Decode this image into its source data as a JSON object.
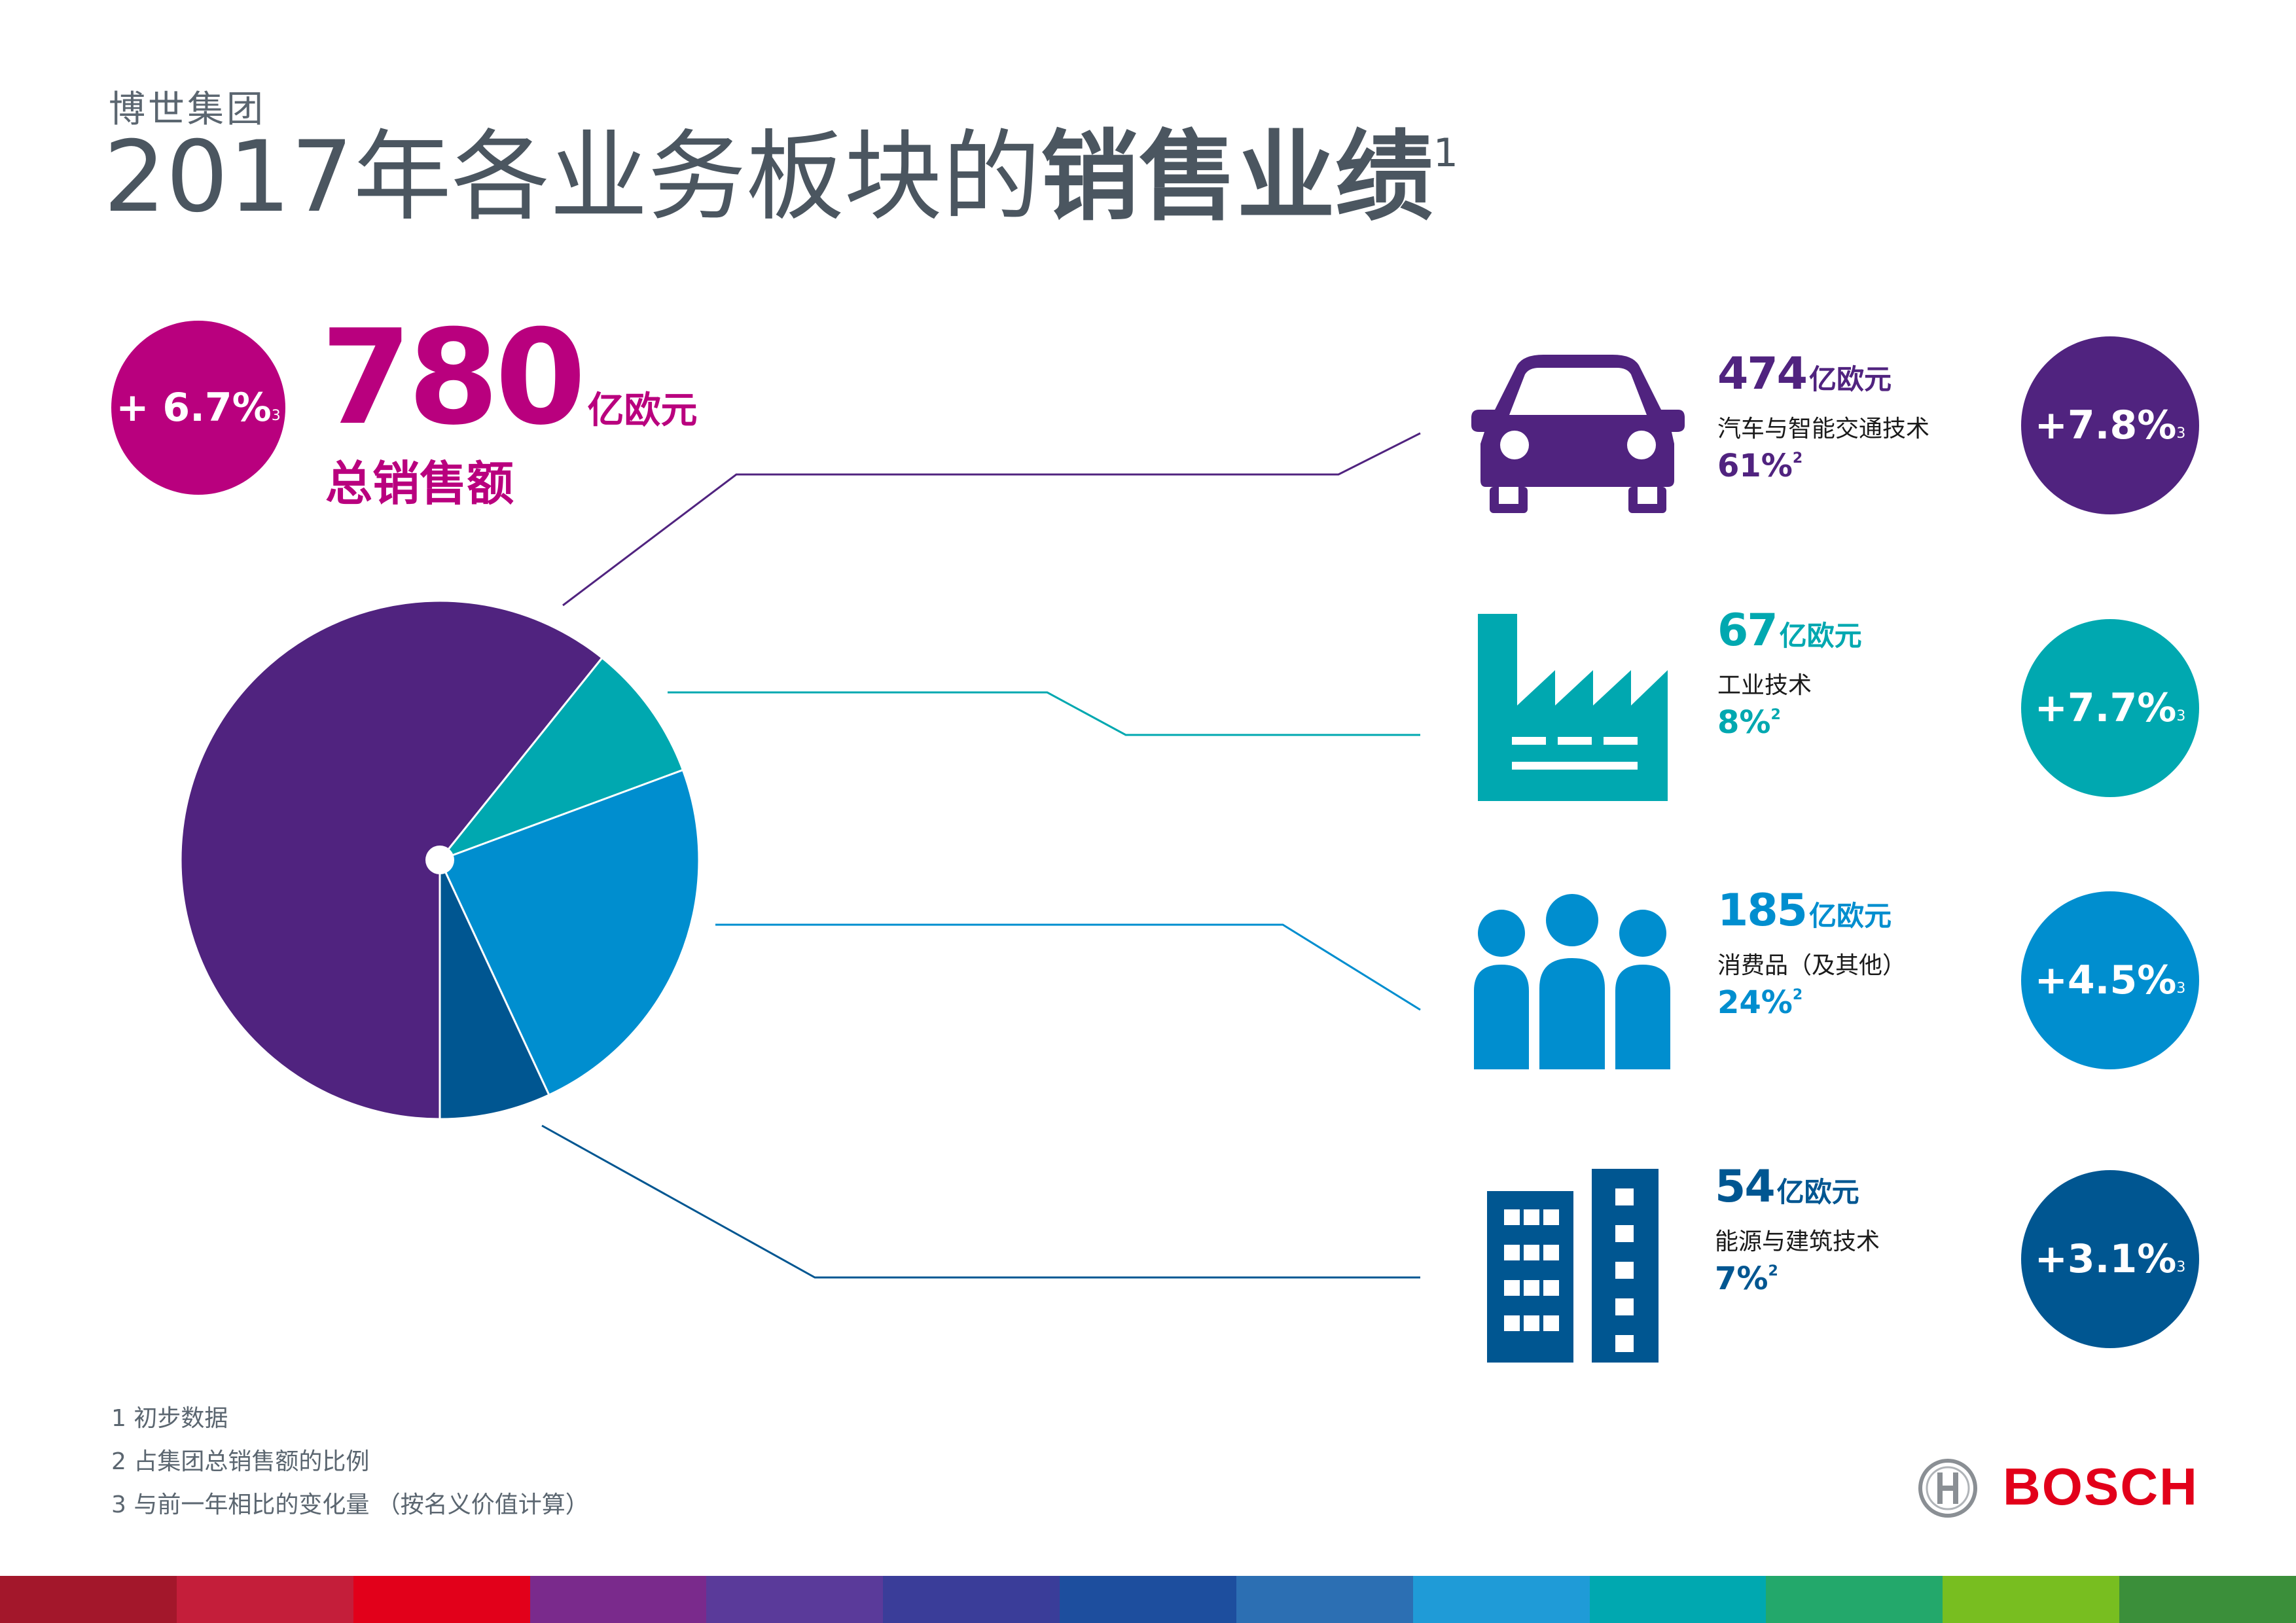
{
  "header": {
    "company": "博世集团",
    "title_regular": "2017年各业务板块的",
    "title_bold": "销售业绩",
    "title_footnote": "1"
  },
  "total": {
    "growth": "+ 6.7%",
    "growth_footnote": "3",
    "value": "780",
    "unit": "亿欧元",
    "label": "总销售额"
  },
  "segments": [
    {
      "amount": "474",
      "unit": "亿欧元",
      "name": "汽车与智能交通技术",
      "share": "61%",
      "share_footnote": "2",
      "growth": "+7.8%",
      "growth_footnote": "3",
      "color": "#50237f",
      "icon": "car-icon"
    },
    {
      "amount": "67",
      "unit": "亿欧元",
      "name": "工业技术",
      "share": "8%",
      "share_footnote": "2",
      "growth": "+7.7%",
      "growth_footnote": "3",
      "color": "#00a8b0",
      "icon": "factory-icon"
    },
    {
      "amount": "185",
      "unit": "亿欧元",
      "name": "消费品（及其他）",
      "share": "24%",
      "share_footnote": "2",
      "growth": "+4.5%",
      "growth_footnote": "3",
      "color": "#008ecf",
      "icon": "people-icon"
    },
    {
      "amount": "54",
      "unit": "亿欧元",
      "name": "能源与建筑技术",
      "share": "7%",
      "share_footnote": "2",
      "growth": "+3.1%",
      "growth_footnote": "3",
      "color": "#005691",
      "icon": "building-icon"
    }
  ],
  "chart_data": {
    "type": "pie",
    "categories": [
      "汽车与智能交通技术",
      "工业技术",
      "消费品（及其他）",
      "能源与建筑技术"
    ],
    "values": [
      474,
      67,
      185,
      54
    ],
    "colors": [
      "#50237f",
      "#00a8b0",
      "#008ecf",
      "#005691"
    ]
  },
  "footnotes": [
    "1 初步数据",
    "2 占集团总销售额的比例",
    "3 与前一年相比的变化量 （按名义价值计算）"
  ],
  "brand": {
    "name": "BOSCH"
  },
  "bottom_bar_colors": [
    "#a3172b",
    "#c41e3a",
    "#e2001a",
    "#7a2a8c",
    "#5a3a9a",
    "#3a3d99",
    "#1d4e9e",
    "#2c6fb3",
    "#1f9bd7",
    "#00a8b0",
    "#23a86b",
    "#78be20",
    "#3b8f3a"
  ]
}
